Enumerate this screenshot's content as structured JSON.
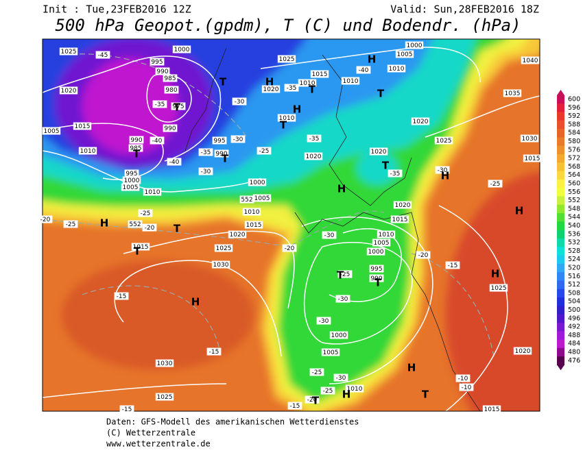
{
  "header": {
    "init": "Init : Tue,23FEB2016 12Z",
    "valid": "Valid: Sun,28FEB2016 18Z",
    "title": "500 hPa Geopot.(gpdm), T (C) und Bodendr. (hPa)"
  },
  "colorbar": {
    "labels": [
      600,
      596,
      592,
      588,
      584,
      580,
      576,
      572,
      568,
      564,
      560,
      556,
      552,
      548,
      544,
      540,
      536,
      532,
      528,
      524,
      520,
      516,
      512,
      508,
      504,
      500,
      496,
      492,
      488,
      484,
      480,
      476
    ]
  },
  "map": {
    "labels": [
      "1025",
      "1000",
      "995",
      "990",
      "985",
      "980",
      "975",
      "990",
      "1015",
      "1020",
      "1005",
      "1010",
      "990",
      "985",
      "995",
      "1000",
      "1005",
      "1010",
      "1025",
      "1015",
      "1010",
      "1010",
      "1010",
      "1005",
      "1000",
      "1020",
      "1010",
      "995",
      "990",
      "1000",
      "1005",
      "1010",
      "1015",
      "1020",
      "1025",
      "1030",
      "1020",
      "1020",
      "1020",
      "1025",
      "1035",
      "1030",
      "1040",
      "1015",
      "1020",
      "1015",
      "1010",
      "1005",
      "1000",
      "995",
      "990",
      "1015",
      "1000",
      "1005",
      "1010",
      "1030",
      "1025",
      "1025",
      "1020",
      "1015",
      "-45",
      "-35",
      "-40",
      "-40",
      "-30",
      "-35",
      "-30",
      "-25",
      "-30",
      "-35",
      "-40",
      "-35",
      "-35",
      "-30",
      "-25",
      "-25",
      "-20",
      "-25",
      "-20",
      "-30",
      "-25",
      "-30",
      "-30",
      "-15",
      "-15",
      "-25",
      "-30",
      "-25",
      "-20",
      "-15",
      "-20",
      "-15",
      "-10",
      "-10",
      "-20",
      "-15",
      "552",
      "552",
      "H",
      "T",
      "H",
      "T",
      "H",
      "T",
      "T",
      "T",
      "T",
      "T",
      "H",
      "T",
      "H",
      "H",
      "T",
      "T",
      "H",
      "T",
      "T",
      "H",
      "H",
      "H",
      "T",
      "H",
      "T"
    ]
  },
  "footer": {
    "line1": "Daten: GFS-Modell des amerikanischen Wetterdienstes",
    "line2": "(C) Wetterzentrale",
    "line3": "www.wetterzentrale.de"
  }
}
